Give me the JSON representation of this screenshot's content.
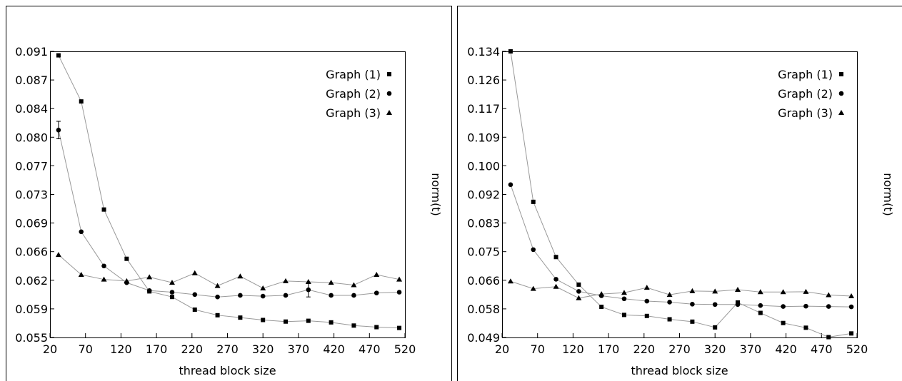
{
  "colors": {
    "series": "#999999",
    "marker": "#000000",
    "frame": "#000000"
  },
  "chart_data": [
    {
      "type": "line",
      "xlabel": "thread block size",
      "ylabel": "norm(t)",
      "xlim": [
        20,
        520
      ],
      "ylim": [
        0.055,
        0.091
      ],
      "xticks": [
        "20",
        "70",
        "120",
        "170",
        "220",
        "270",
        "320",
        "370",
        "420",
        "470",
        "520"
      ],
      "yticks": [
        "0.055",
        "0.059",
        "0.062",
        "0.066",
        "0.069",
        "0.073",
        "0.077",
        "0.080",
        "0.084",
        "0.087",
        "0.091"
      ],
      "legend_position": "top-right",
      "x": [
        32,
        64,
        96,
        128,
        160,
        192,
        224,
        256,
        288,
        320,
        352,
        384,
        416,
        448,
        480,
        512
      ],
      "series": [
        {
          "name": "Graph (1)",
          "marker": "square",
          "values": [
            0.0905,
            0.0847,
            0.0711,
            0.0649,
            0.0608,
            0.0601,
            0.0585,
            0.0578,
            0.0575,
            0.0572,
            0.057,
            0.0571,
            0.0569,
            0.0565,
            0.0563,
            0.0562
          ]
        },
        {
          "name": "Graph (2)",
          "marker": "circle",
          "values": [
            0.0811,
            0.0683,
            0.064,
            0.0619,
            0.0609,
            0.0607,
            0.0604,
            0.0601,
            0.0603,
            0.0602,
            0.0603,
            0.061,
            0.0603,
            0.0603,
            0.0606,
            0.0607
          ],
          "error_bars": [
            {
              "x": 32,
              "low": 0.08,
              "high": 0.0822
            },
            {
              "x": 384,
              "low": 0.0601,
              "high": 0.0619
            }
          ]
        },
        {
          "name": "Graph (3)",
          "marker": "triangle",
          "values": [
            0.0654,
            0.0629,
            0.0623,
            0.0621,
            0.0626,
            0.0619,
            0.0631,
            0.0615,
            0.0627,
            0.0612,
            0.0621,
            0.062,
            0.0619,
            0.0616,
            0.0629,
            0.0623
          ]
        }
      ]
    },
    {
      "type": "line",
      "xlabel": "thread block size",
      "ylabel": "norm(t)",
      "xlim": [
        20,
        520
      ],
      "ylim": [
        0.049,
        0.134
      ],
      "xticks": [
        "20",
        "70",
        "120",
        "170",
        "220",
        "270",
        "320",
        "370",
        "420",
        "470",
        "520"
      ],
      "yticks": [
        "0.049",
        "0.058",
        "0.066",
        "0.075",
        "0.083",
        "0.092",
        "0.100",
        "0.109",
        "0.117",
        "0.126",
        "0.134"
      ],
      "legend_position": "top-right",
      "x": [
        32,
        64,
        96,
        128,
        160,
        192,
        224,
        256,
        288,
        320,
        352,
        384,
        416,
        448,
        480,
        512
      ],
      "series": [
        {
          "name": "Graph (1)",
          "marker": "square",
          "values": [
            0.134,
            0.0893,
            0.0729,
            0.0647,
            0.0581,
            0.0557,
            0.0554,
            0.0544,
            0.0537,
            0.052,
            0.0594,
            0.0563,
            0.0533,
            0.0519,
            0.0491,
            0.0502
          ]
        },
        {
          "name": "Graph (2)",
          "marker": "circle",
          "values": [
            0.0944,
            0.0751,
            0.0663,
            0.0627,
            0.0614,
            0.0605,
            0.0598,
            0.0595,
            0.0589,
            0.0588,
            0.0588,
            0.0585,
            0.0582,
            0.0583,
            0.0582,
            0.0581
          ]
        },
        {
          "name": "Graph (3)",
          "marker": "triangle",
          "values": [
            0.0657,
            0.0635,
            0.0641,
            0.0607,
            0.0619,
            0.0623,
            0.0638,
            0.0617,
            0.0628,
            0.0627,
            0.0632,
            0.0625,
            0.0625,
            0.0626,
            0.0616,
            0.0613
          ]
        }
      ]
    }
  ]
}
